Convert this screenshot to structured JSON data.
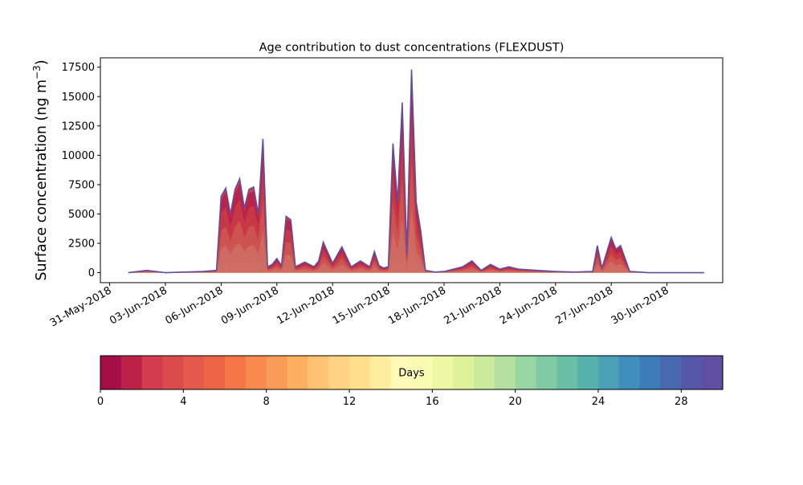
{
  "chart_data": [
    {
      "type": "area",
      "title": "Age contribution to dust concentrations (FLEXDUST)",
      "ylabel_main": "Surface concentration (ng m",
      "ylabel_sup": "−3",
      "ylabel_close": ")",
      "xlabel": "",
      "stacked": true,
      "ylim": [
        -850,
        18300
      ],
      "xlim": [
        "2018-05-30T12:00",
        "2018-07-03T00:00"
      ],
      "x_ticks": [
        "2018-05-31",
        "2018-06-03",
        "2018-06-06",
        "2018-06-09",
        "2018-06-12",
        "2018-06-15",
        "2018-06-18",
        "2018-06-21",
        "2018-06-24",
        "2018-06-27",
        "2018-06-30"
      ],
      "x_tick_labels": [
        "31-May-2018",
        "03-Jun-2018",
        "06-Jun-2018",
        "09-Jun-2018",
        "12-Jun-2018",
        "15-Jun-2018",
        "18-Jun-2018",
        "21-Jun-2018",
        "24-Jun-2018",
        "27-Jun-2018",
        "30-Jun-2018"
      ],
      "y_ticks": [
        0,
        2500,
        5000,
        7500,
        10000,
        12500,
        15000,
        17500
      ],
      "y_tick_labels": [
        "0",
        "2500",
        "5000",
        "7500",
        "10000",
        "12500",
        "15000",
        "17500"
      ],
      "grid": false,
      "series_note_colors": [
        "#a50f45",
        "#d23c4f",
        "#f46d43",
        "#fdae61",
        "#fee08b",
        "#5e4fa2"
      ],
      "series": [
        {
          "x": [
            "2018-06-01T00:00",
            "2018-06-02T00:00",
            "2018-06-02T12:00",
            "2018-06-03T00:00",
            "2018-06-04T00:00",
            "2018-06-05T00:00",
            "2018-06-05T18:00",
            "2018-06-06T00:00",
            "2018-06-06T06:00",
            "2018-06-06T12:00",
            "2018-06-06T18:00",
            "2018-06-07T00:00",
            "2018-06-07T06:00",
            "2018-06-07T12:00",
            "2018-06-07T18:00",
            "2018-06-08T00:00",
            "2018-06-08T06:00",
            "2018-06-08T09:00",
            "2018-06-08T12:00",
            "2018-06-08T18:00",
            "2018-06-09T00:00",
            "2018-06-09T06:00",
            "2018-06-09T12:00",
            "2018-06-09T18:00",
            "2018-06-10T00:00",
            "2018-06-10T12:00",
            "2018-06-11T00:00",
            "2018-06-11T06:00",
            "2018-06-11T12:00",
            "2018-06-12T00:00",
            "2018-06-12T12:00",
            "2018-06-13T00:00",
            "2018-06-13T12:00",
            "2018-06-14T00:00",
            "2018-06-14T06:00",
            "2018-06-14T12:00",
            "2018-06-14T18:00",
            "2018-06-15T00:00",
            "2018-06-15T06:00",
            "2018-06-15T12:00",
            "2018-06-15T18:00",
            "2018-06-16T00:00",
            "2018-06-16T06:00",
            "2018-06-16T12:00",
            "2018-06-16T18:00",
            "2018-06-17T00:00",
            "2018-06-17T12:00",
            "2018-06-18T00:00",
            "2018-06-19T00:00",
            "2018-06-19T12:00",
            "2018-06-20T00:00",
            "2018-06-20T12:00",
            "2018-06-21T00:00",
            "2018-06-21T12:00",
            "2018-06-22T00:00",
            "2018-06-23T00:00",
            "2018-06-24T00:00",
            "2018-06-25T00:00",
            "2018-06-26T00:00",
            "2018-06-26T06:00",
            "2018-06-26T12:00",
            "2018-06-27T00:00",
            "2018-06-27T06:00",
            "2018-06-27T12:00",
            "2018-06-28T00:00",
            "2018-06-29T00:00",
            "2018-06-30T00:00",
            "2018-07-01T00:00",
            "2018-07-02T00:00"
          ],
          "values": [
            0,
            200,
            100,
            0,
            50,
            100,
            200,
            6500,
            7200,
            5000,
            7100,
            8000,
            5500,
            7100,
            7300,
            5000,
            11400,
            6000,
            500,
            700,
            1200,
            600,
            4800,
            4500,
            500,
            900,
            500,
            1000,
            2600,
            800,
            2200,
            500,
            1000,
            500,
            1800,
            600,
            400,
            500,
            11000,
            6000,
            14500,
            1500,
            17300,
            6000,
            3500,
            200,
            50,
            100,
            500,
            1000,
            200,
            700,
            300,
            500,
            300,
            200,
            100,
            50,
            100,
            2300,
            400,
            3000,
            2000,
            2300,
            100,
            0,
            0,
            0,
            0
          ]
        }
      ],
      "colorbar": {
        "label": "Days",
        "range": [
          0,
          30
        ],
        "ticks": [
          0,
          4,
          8,
          12,
          16,
          20,
          24,
          28
        ],
        "tick_labels": [
          "0",
          "4",
          "8",
          "12",
          "16",
          "20",
          "24",
          "28"
        ],
        "colors": [
          "#a50f45",
          "#be2148",
          "#d23c4f",
          "#db4b4b",
          "#e65a4d",
          "#ee6546",
          "#f57748",
          "#f8894f",
          "#fa9b57",
          "#fdae61",
          "#fec272",
          "#fed383",
          "#fee08b",
          "#feec9f",
          "#fffab6",
          "#f7fcb2",
          "#edf8a3",
          "#dff299",
          "#cbea9c",
          "#b5e1a0",
          "#98d6a4",
          "#7fcba5",
          "#6ac0a6",
          "#57b1ab",
          "#4aa0b4",
          "#3f8ebb",
          "#3d7bb9",
          "#4869b0",
          "#5757a8",
          "#5e4fa2"
        ]
      }
    }
  ]
}
